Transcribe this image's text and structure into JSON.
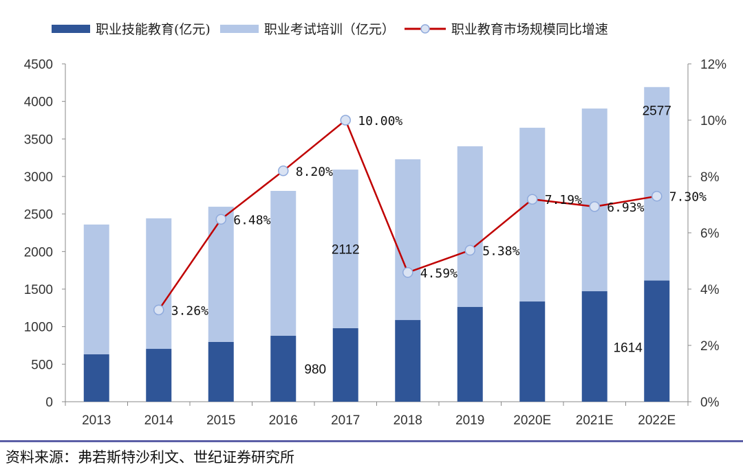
{
  "chart_data": {
    "type": "bar",
    "stacked": true,
    "categories": [
      "2013",
      "2014",
      "2015",
      "2016",
      "2017",
      "2018",
      "2019",
      "2020E",
      "2021E",
      "2022E"
    ],
    "series": [
      {
        "name": "职业技能教育(亿元)",
        "type": "bar",
        "axis": "left",
        "color": "#2f5597",
        "values": [
          631,
          704,
          796,
          878,
          980,
          1088,
          1262,
          1335,
          1472,
          1614
        ]
      },
      {
        "name": "职业考试培训（亿元）",
        "type": "bar",
        "axis": "left",
        "color": "#b4c7e7",
        "values": [
          1729,
          1738,
          1801,
          1930,
          2112,
          2141,
          2140,
          2314,
          2433,
          2577
        ]
      },
      {
        "name": "职业教育市场规模同比增速",
        "type": "line",
        "axis": "right",
        "color": "#c00000",
        "values": [
          null,
          3.26,
          6.48,
          8.2,
          10.0,
          4.59,
          5.38,
          7.19,
          6.93,
          7.3
        ],
        "labels": [
          "",
          "3.26%",
          "6.48%",
          "8.20%",
          "10.00%",
          "4.59%",
          "5.38%",
          "7.19%",
          "6.93%",
          "7.30%"
        ]
      }
    ],
    "data_labels": [
      {
        "category": "2017",
        "series": 0,
        "text": "980"
      },
      {
        "category": "2017",
        "series": 1,
        "text": "2112"
      },
      {
        "category": "2022E",
        "series": 0,
        "text": "1614"
      },
      {
        "category": "2022E",
        "series": 1,
        "text": "2577"
      }
    ],
    "ylim": [
      0,
      4500
    ],
    "yticks": [
      "0",
      "500",
      "1000",
      "1500",
      "2000",
      "2500",
      "3000",
      "3500",
      "4000",
      "4500"
    ],
    "y2lim": [
      0,
      12
    ],
    "y2ticks": [
      "0%",
      "2%",
      "4%",
      "6%",
      "8%",
      "10%",
      "12%"
    ],
    "grid": false,
    "legend": "top"
  },
  "source": "资料来源：弗若斯特沙利文、世纪证券研究所"
}
